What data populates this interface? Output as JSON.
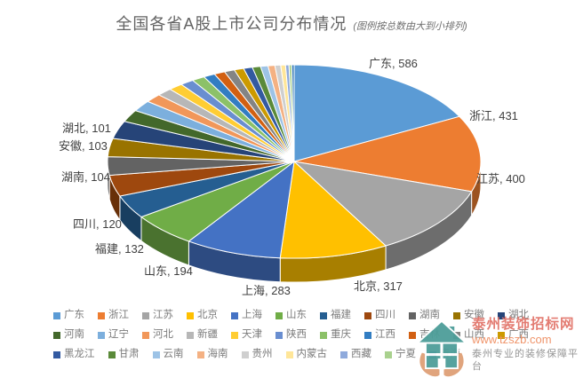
{
  "title": {
    "main": "全国各省A股上市公司分布情况",
    "note": "(图例按总数由大到小排列)"
  },
  "chart_data": {
    "type": "pie",
    "is_3d": true,
    "start_angle_deg": -90,
    "direction": "clockwise",
    "sort": "descending_by_value",
    "legend_position": "bottom",
    "data_label_format": "name, value",
    "provinces": [
      {
        "name": "广东",
        "value": 586,
        "color": "#5B9BD5",
        "label_shown": true
      },
      {
        "name": "浙江",
        "value": 431,
        "color": "#ED7D31",
        "label_shown": true
      },
      {
        "name": "江苏",
        "value": 400,
        "color": "#A5A5A5",
        "label_shown": true
      },
      {
        "name": "北京",
        "value": 317,
        "color": "#FFC000",
        "label_shown": true
      },
      {
        "name": "上海",
        "value": 283,
        "color": "#4472C4",
        "label_shown": true
      },
      {
        "name": "山东",
        "value": 194,
        "color": "#70AD47",
        "label_shown": true
      },
      {
        "name": "福建",
        "value": 132,
        "color": "#255E91",
        "label_shown": true
      },
      {
        "name": "四川",
        "value": 120,
        "color": "#9E480E",
        "label_shown": true
      },
      {
        "name": "湖南",
        "value": 104,
        "color": "#636363",
        "label_shown": true
      },
      {
        "name": "安徽",
        "value": 103,
        "color": "#997300",
        "label_shown": true
      },
      {
        "name": "湖北",
        "value": 101,
        "color": "#264478",
        "label_shown": true
      },
      {
        "name": "河南",
        "value": 68,
        "color": "#43682B",
        "label_shown": false,
        "value_estimated": true
      },
      {
        "name": "辽宁",
        "value": 62,
        "color": "#7CAFDD",
        "label_shown": false,
        "value_estimated": true
      },
      {
        "name": "河北",
        "value": 49,
        "color": "#F1975A",
        "label_shown": false,
        "value_estimated": true
      },
      {
        "name": "新疆",
        "value": 45,
        "color": "#B7B7B7",
        "label_shown": false,
        "value_estimated": true
      },
      {
        "name": "天津",
        "value": 42,
        "color": "#FFCD33",
        "label_shown": false,
        "value_estimated": true
      },
      {
        "name": "陕西",
        "value": 40,
        "color": "#698ED0",
        "label_shown": false,
        "value_estimated": true
      },
      {
        "name": "重庆",
        "value": 38,
        "color": "#8CC168",
        "label_shown": false,
        "value_estimated": true
      },
      {
        "name": "江西",
        "value": 34,
        "color": "#327DC2",
        "label_shown": false,
        "value_estimated": true
      },
      {
        "name": "吉林",
        "value": 32,
        "color": "#D26012",
        "label_shown": false,
        "value_estimated": true
      },
      {
        "name": "山西",
        "value": 30,
        "color": "#848484",
        "label_shown": false,
        "value_estimated": true
      },
      {
        "name": "广西",
        "value": 28,
        "color": "#CC9A00",
        "label_shown": false,
        "value_estimated": true
      },
      {
        "name": "黑龙江",
        "value": 26,
        "color": "#335AA1",
        "label_shown": false,
        "value_estimated": true
      },
      {
        "name": "甘肃",
        "value": 24,
        "color": "#5A8A39",
        "label_shown": false,
        "value_estimated": true
      },
      {
        "name": "云南",
        "value": 22,
        "color": "#9DC3E6",
        "label_shown": false,
        "value_estimated": true
      },
      {
        "name": "海南",
        "value": 20,
        "color": "#F4B183",
        "label_shown": false,
        "value_estimated": true
      },
      {
        "name": "贵州",
        "value": 17,
        "color": "#CFCFCF",
        "label_shown": false,
        "value_estimated": true
      },
      {
        "name": "内蒙古",
        "value": 14,
        "color": "#FFE699",
        "label_shown": false,
        "value_estimated": true
      },
      {
        "name": "西藏",
        "value": 10,
        "color": "#8FAADC",
        "label_shown": false,
        "value_estimated": true
      },
      {
        "name": "宁夏",
        "value": 8,
        "color": "#A9D18E",
        "label_shown": false,
        "value_estimated": true
      },
      {
        "name": "青海",
        "value": 7,
        "color": "#2E75B6",
        "label_shown": false,
        "value_estimated": true
      }
    ],
    "legend_rows": [
      [
        "广东",
        "浙江",
        "江苏",
        "北京",
        "上海",
        "山东",
        "福建",
        "四川",
        "湖南",
        "安徽",
        "湖北"
      ],
      [
        "河南",
        "辽宁",
        "河北",
        "新疆",
        "天津",
        "陕西",
        "重庆",
        "江西",
        "吉林",
        "山西",
        "广西"
      ],
      [
        "黑龙江",
        "甘肃",
        "云南",
        "海南",
        "贵州",
        "内蒙古",
        "西藏",
        "宁夏",
        "青海"
      ]
    ]
  },
  "watermark": {
    "site_name": "泰州装饰招标网",
    "url": "www.tzszb.com",
    "slogan": "泰州专业的装修保障平台",
    "icon": "house-in-hands-icon",
    "brand_red": "#E2756B",
    "brand_teal": "#4D9E99",
    "hand_color": "#DFA077"
  }
}
